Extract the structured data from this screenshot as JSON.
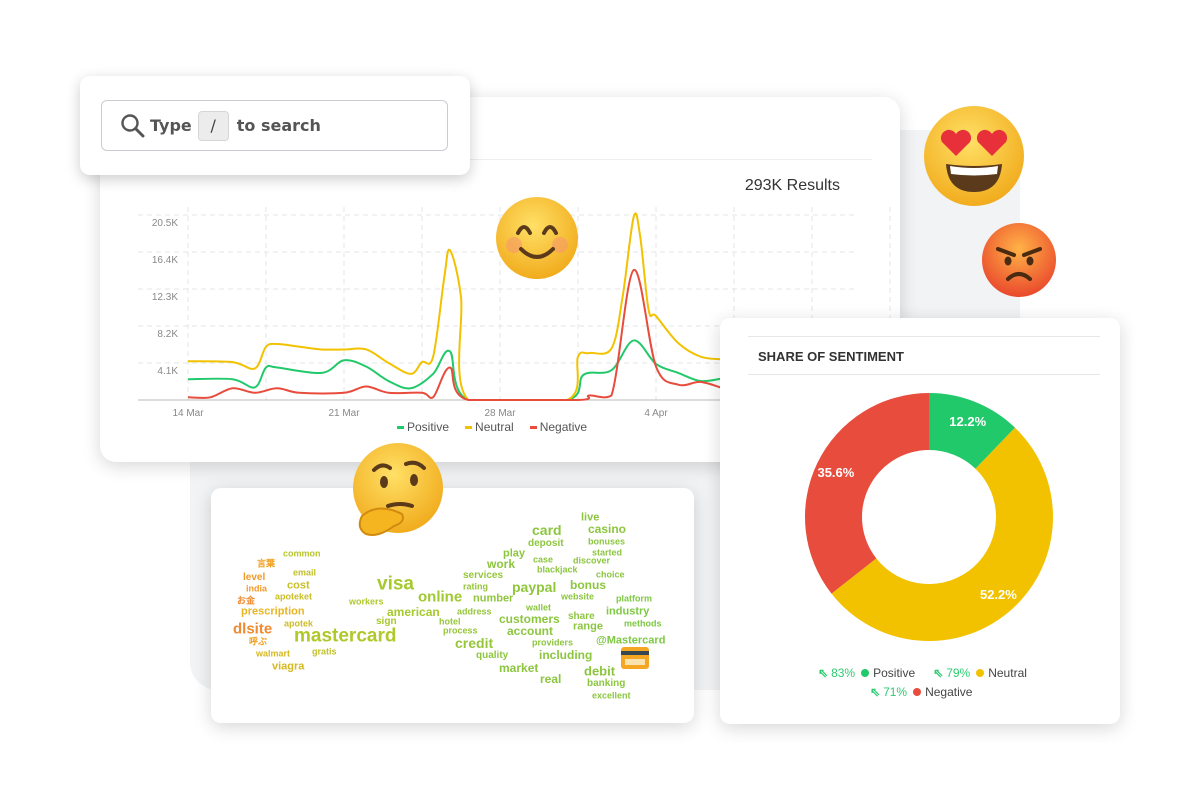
{
  "search": {
    "prefix": "Type",
    "key": "/",
    "suffix": "to search"
  },
  "results": "293K Results",
  "colors": {
    "positive": "#22c96b",
    "neutral": "#f2c200",
    "negative": "#e84c3d"
  },
  "line_chart": {
    "type": "line",
    "y_ticks": [
      "20.5K",
      "16.4K",
      "12.3K",
      "8.2K",
      "4.1K"
    ],
    "ylim": [
      0,
      20500
    ],
    "x_ticks": [
      "14 Mar",
      "21 Mar",
      "28 Mar",
      "4 Apr"
    ],
    "legend": [
      "Positive",
      "Neutral",
      "Negative"
    ],
    "series": [
      {
        "name": "Positive",
        "points": [
          [
            "14 Mar",
            2300
          ],
          [
            "16 Mar",
            2300
          ],
          [
            "17 Mar",
            1400
          ],
          [
            "17 Mar 12:00",
            3600
          ],
          [
            "18 Mar",
            3600
          ],
          [
            "20 Mar",
            3000
          ],
          [
            "21 Mar",
            4400
          ],
          [
            "22 Mar",
            3700
          ],
          [
            "23 Mar",
            2100
          ],
          [
            "24 Mar",
            1300
          ],
          [
            "25 Mar",
            2900
          ],
          [
            "25 Mar 18:00",
            5400
          ],
          [
            "26 Mar 14:00",
            0
          ],
          [
            "31 Mar",
            0
          ],
          [
            "31 Mar 18:00",
            2800
          ],
          [
            "2 Apr",
            3300
          ],
          [
            "3 Apr",
            6600
          ],
          [
            "4 Apr",
            4000
          ],
          [
            "5 Apr",
            3000
          ],
          [
            "6 Apr",
            2100
          ],
          [
            "7 Apr",
            2400
          ]
        ]
      },
      {
        "name": "Neutral",
        "points": [
          [
            "14 Mar",
            4300
          ],
          [
            "16 Mar",
            4200
          ],
          [
            "17 Mar",
            3500
          ],
          [
            "17 Mar 12:00",
            5900
          ],
          [
            "18 Mar",
            6200
          ],
          [
            "19 Mar",
            5900
          ],
          [
            "20 Mar",
            5600
          ],
          [
            "21 Mar",
            5600
          ],
          [
            "22 Mar",
            5600
          ],
          [
            "23 Mar",
            4100
          ],
          [
            "24 Mar",
            2900
          ],
          [
            "24 Mar 12:00",
            4200
          ],
          [
            "25 Mar",
            4800
          ],
          [
            "25 Mar 12:00",
            13600
          ],
          [
            "25 Mar 18:00",
            16600
          ],
          [
            "26 Mar 06:00",
            11400
          ],
          [
            "26 Mar 14:00",
            0
          ],
          [
            "31 Mar",
            0
          ],
          [
            "31 Mar 12:00",
            4800
          ],
          [
            "1 Apr",
            5200
          ],
          [
            "2 Apr",
            5700
          ],
          [
            "2 Apr 12:00",
            11400
          ],
          [
            "3 Apr",
            20300
          ],
          [
            "3 Apr 07:00",
            18100
          ],
          [
            "3 Apr 16:00",
            10000
          ],
          [
            "4 Apr",
            9300
          ],
          [
            "5 Apr",
            6300
          ],
          [
            "6 Apr",
            4800
          ],
          [
            "7 Apr",
            4500
          ]
        ]
      },
      {
        "name": "Negative",
        "points": [
          [
            "14 Mar",
            300
          ],
          [
            "15 Mar",
            300
          ],
          [
            "16 Mar",
            1300
          ],
          [
            "17 Mar",
            800
          ],
          [
            "18 Mar",
            1300
          ],
          [
            "19 Mar",
            800
          ],
          [
            "21 Mar",
            800
          ],
          [
            "22 Mar",
            1500
          ],
          [
            "23 Mar",
            800
          ],
          [
            "24 Mar 12:00",
            800
          ],
          [
            "25 Mar",
            300
          ],
          [
            "25 Mar 18:00",
            3600
          ],
          [
            "26 Mar 14:00",
            0
          ],
          [
            "31 Mar 12:00",
            0
          ],
          [
            "1 Apr",
            500
          ],
          [
            "2 Apr",
            500
          ],
          [
            "3 Apr",
            14400
          ],
          [
            "4 Apr",
            3700
          ],
          [
            "5 Apr",
            1700
          ],
          [
            "6 Apr",
            2000
          ],
          [
            "7 Apr",
            1300
          ]
        ]
      }
    ]
  },
  "chart_data": {
    "type": "pie",
    "title": "SHARE OF SENTIMENT",
    "slices": [
      {
        "name": "Positive",
        "value": 12.2,
        "label": "12.2%",
        "change": "83%",
        "color": "#22c96b"
      },
      {
        "name": "Neutral",
        "value": 52.2,
        "label": "52.2%",
        "change": "79%",
        "color": "#f2c200"
      },
      {
        "name": "Negative",
        "value": 35.6,
        "label": "35.6%",
        "change": "71%",
        "color": "#e84c3d"
      }
    ]
  },
  "word_cloud": [
    {
      "t": "live",
      "c": "#8cc63f"
    },
    {
      "t": "card",
      "c": "#8cc63f"
    },
    {
      "t": "casino",
      "c": "#8cc63f"
    },
    {
      "t": "deposit",
      "c": "#8cc63f"
    },
    {
      "t": "bonuses",
      "c": "#8cc63f"
    },
    {
      "t": "common",
      "c": "#b8c72c"
    },
    {
      "t": "言葉",
      "c": "#f0a020"
    },
    {
      "t": "play",
      "c": "#8cc63f"
    },
    {
      "t": "case",
      "c": "#8cc63f"
    },
    {
      "t": "started",
      "c": "#8cc63f"
    },
    {
      "t": "discover",
      "c": "#8cc63f"
    },
    {
      "t": "work",
      "c": "#8cc63f"
    },
    {
      "t": "blackjack",
      "c": "#8cc63f"
    },
    {
      "t": "level",
      "c": "#f09a28"
    },
    {
      "t": "email",
      "c": "#c2c028"
    },
    {
      "t": "choice",
      "c": "#8cc63f"
    },
    {
      "t": "services",
      "c": "#96c63a"
    },
    {
      "t": "india",
      "c": "#f09a28"
    },
    {
      "t": "cost",
      "c": "#c8bf25"
    },
    {
      "t": "visa",
      "c": "#a6c92e"
    },
    {
      "t": "rating",
      "c": "#96c63a"
    },
    {
      "t": "paypal",
      "c": "#90c63c"
    },
    {
      "t": "bonus",
      "c": "#8cc63f"
    },
    {
      "t": "お金",
      "c": "#f08a30"
    },
    {
      "t": "apoteket",
      "c": "#c8bf25"
    },
    {
      "t": "online",
      "c": "#a0c932"
    },
    {
      "t": "number",
      "c": "#90c63c"
    },
    {
      "t": "website",
      "c": "#8cc63f"
    },
    {
      "t": "platform",
      "c": "#7ec843"
    },
    {
      "t": "workers",
      "c": "#b0c82c"
    },
    {
      "t": "wallet",
      "c": "#8cc63f"
    },
    {
      "t": "prescription",
      "c": "#e8b41f"
    },
    {
      "t": "american",
      "c": "#a6c92e"
    },
    {
      "t": "address",
      "c": "#96c63a"
    },
    {
      "t": "customers",
      "c": "#8cc63f"
    },
    {
      "t": "share",
      "c": "#8cc63f"
    },
    {
      "t": "industry",
      "c": "#7ec843"
    },
    {
      "t": "sign",
      "c": "#a6c92e"
    },
    {
      "t": "hotel",
      "c": "#96c63a"
    },
    {
      "t": "apotek",
      "c": "#cdbd25"
    },
    {
      "t": "methods",
      "c": "#7ec843"
    },
    {
      "t": "dlsite",
      "c": "#ef8a30"
    },
    {
      "t": "mastercard",
      "c": "#b0c82a"
    },
    {
      "t": "process",
      "c": "#96c63a"
    },
    {
      "t": "account",
      "c": "#8cc63f"
    },
    {
      "t": "range",
      "c": "#8cc63f"
    },
    {
      "t": "呼ぶ",
      "c": "#f0a020"
    },
    {
      "t": "credit",
      "c": "#96c63a"
    },
    {
      "t": "providers",
      "c": "#8cc63f"
    },
    {
      "t": "@Mastercard",
      "c": "#7ec843"
    },
    {
      "t": "gratis",
      "c": "#c2c028"
    },
    {
      "t": "walmart",
      "c": "#d6b820"
    },
    {
      "t": "quality",
      "c": "#8cc63f"
    },
    {
      "t": "including",
      "c": "#8cc63f"
    },
    {
      "t": "viagra",
      "c": "#d6b820"
    },
    {
      "t": "market",
      "c": "#8cc63f"
    },
    {
      "t": "debit",
      "c": "#8cc63f"
    },
    {
      "t": "real",
      "c": "#8cc63f"
    },
    {
      "t": "banking",
      "c": "#8cc63f"
    },
    {
      "t": "excellent",
      "c": "#8cc63f"
    }
  ]
}
